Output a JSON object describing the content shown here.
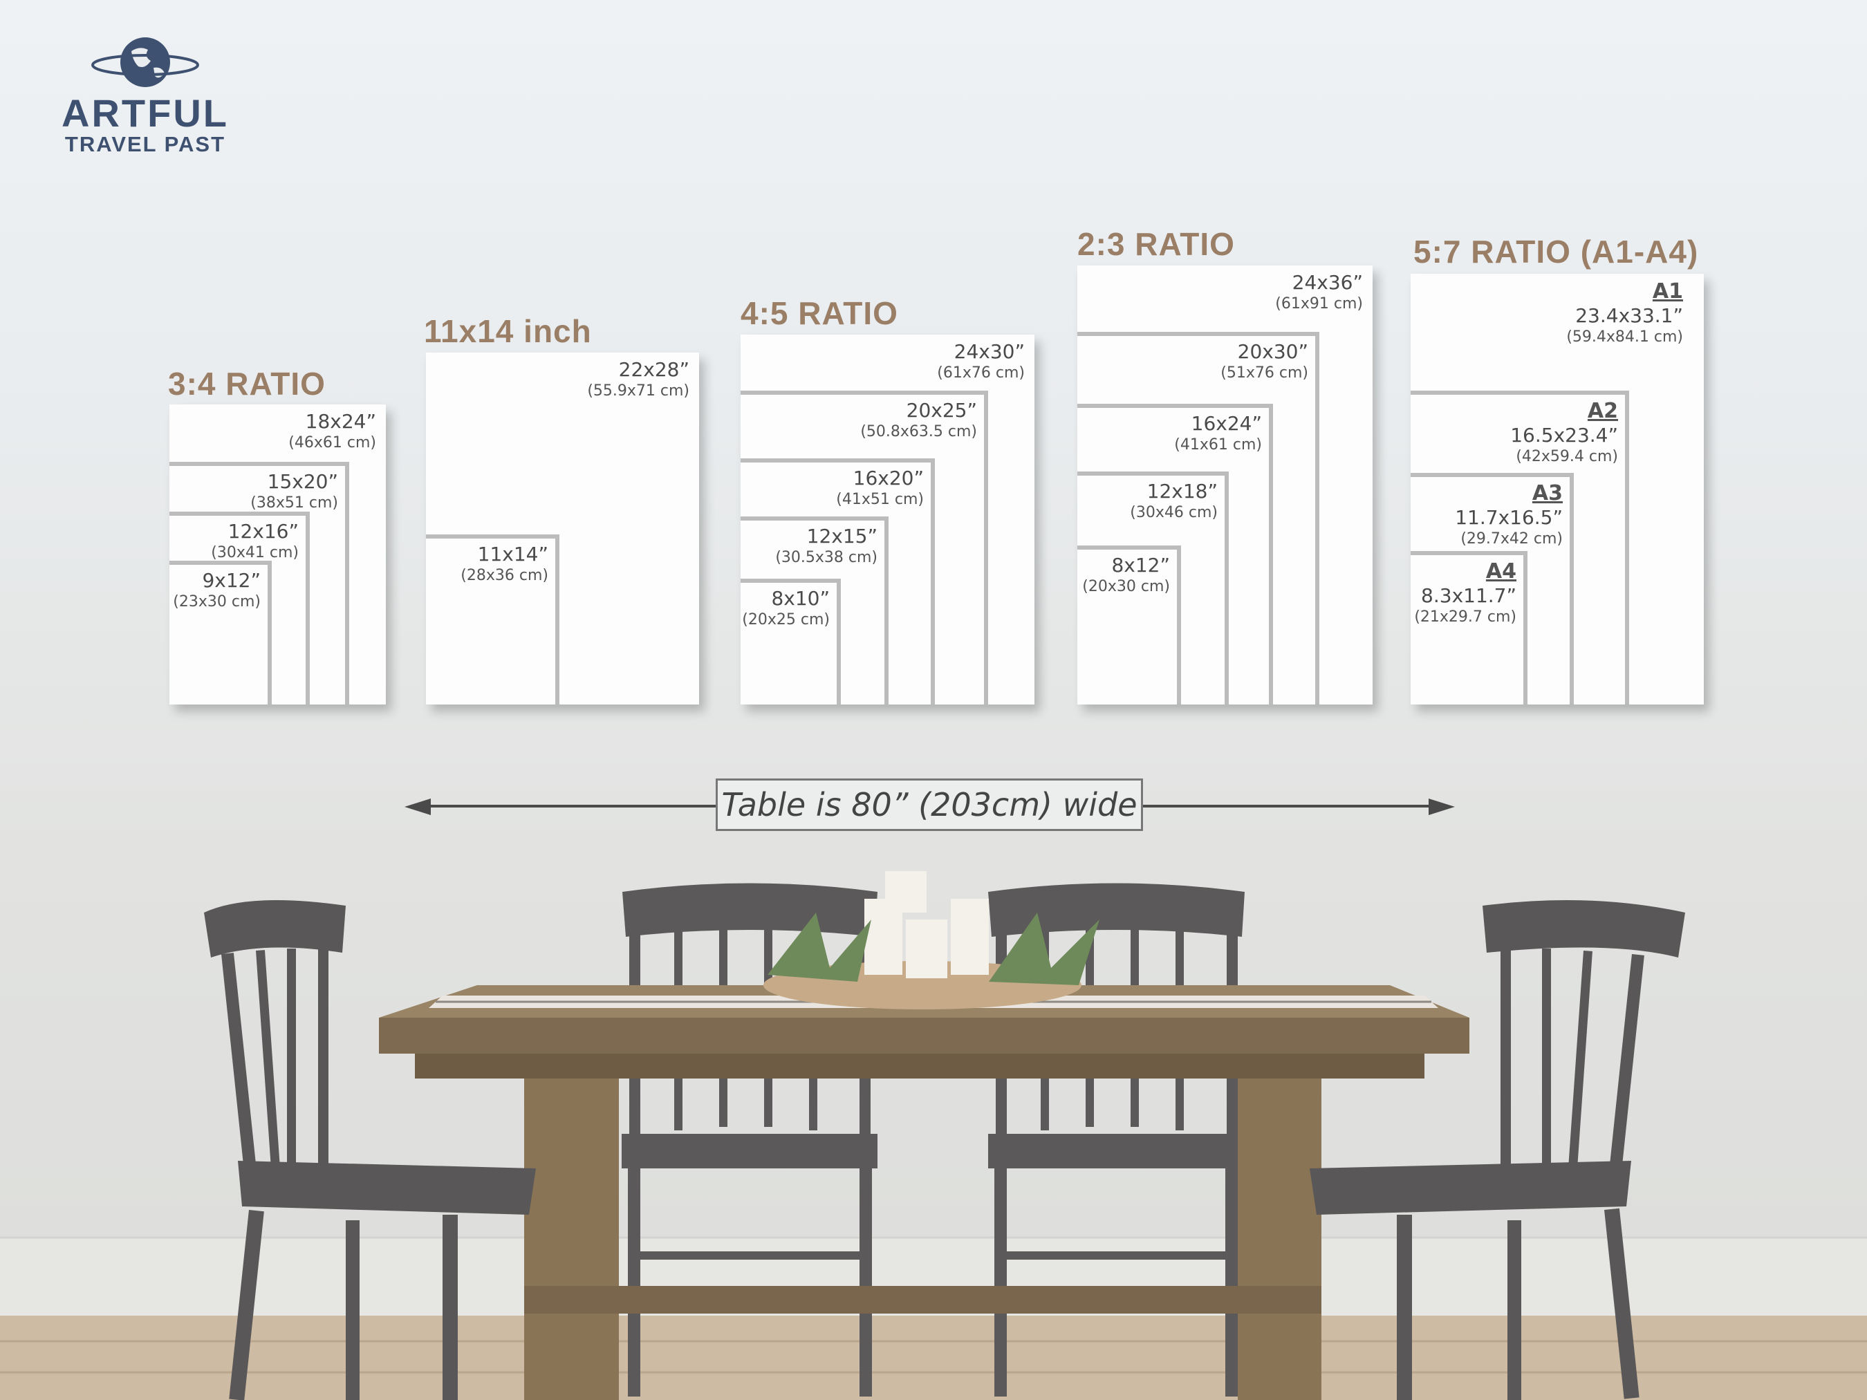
{
  "logo": {
    "line1": "ARTFUL",
    "line2": "TRAVEL PAST",
    "brand_color": "#3f5170"
  },
  "accent_color": "#9a7f66",
  "groups": {
    "r34": {
      "title": "3:4 RATIO",
      "sizes": [
        {
          "inch": "18x24”",
          "cm": "(46x61 cm)"
        },
        {
          "inch": "15x20”",
          "cm": "(38x51 cm)"
        },
        {
          "inch": "12x16”",
          "cm": "(30x41 cm)"
        },
        {
          "inch": "9x12”",
          "cm": "(23x30 cm)"
        }
      ]
    },
    "r1114": {
      "title": "11x14 inch",
      "sizes": [
        {
          "inch": "22x28”",
          "cm": "(55.9x71 cm)"
        },
        {
          "inch": "11x14”",
          "cm": "(28x36 cm)"
        }
      ]
    },
    "r45": {
      "title": "4:5 RATIO",
      "sizes": [
        {
          "inch": "24x30”",
          "cm": "(61x76 cm)"
        },
        {
          "inch": "20x25”",
          "cm": "(50.8x63.5 cm)"
        },
        {
          "inch": "16x20”",
          "cm": "(41x51 cm)"
        },
        {
          "inch": "12x15”",
          "cm": "(30.5x38 cm)"
        },
        {
          "inch": "8x10”",
          "cm": "(20x25 cm)"
        }
      ]
    },
    "r23": {
      "title": "2:3 RATIO",
      "sizes": [
        {
          "inch": "24x36”",
          "cm": "(61x91 cm)"
        },
        {
          "inch": "20x30”",
          "cm": "(51x76 cm)"
        },
        {
          "inch": "16x24”",
          "cm": "(41x61 cm)"
        },
        {
          "inch": "12x18”",
          "cm": "(30x46 cm)"
        },
        {
          "inch": "8x12”",
          "cm": "(20x30 cm)"
        }
      ]
    },
    "r57": {
      "title": "5:7 RATIO (A1-A4)",
      "sizes": [
        {
          "code": "A1",
          "inch": "23.4x33.1”",
          "cm": "(59.4x84.1 cm)"
        },
        {
          "code": "A2",
          "inch": "16.5x23.4”",
          "cm": "(42x59.4 cm)"
        },
        {
          "code": "A3",
          "inch": "11.7x16.5”",
          "cm": "(29.7x42 cm)"
        },
        {
          "code": "A4",
          "inch": "8.3x11.7”",
          "cm": "(21x29.7 cm)"
        }
      ]
    }
  },
  "table_width_label": "Table is 80” (203cm) wide"
}
